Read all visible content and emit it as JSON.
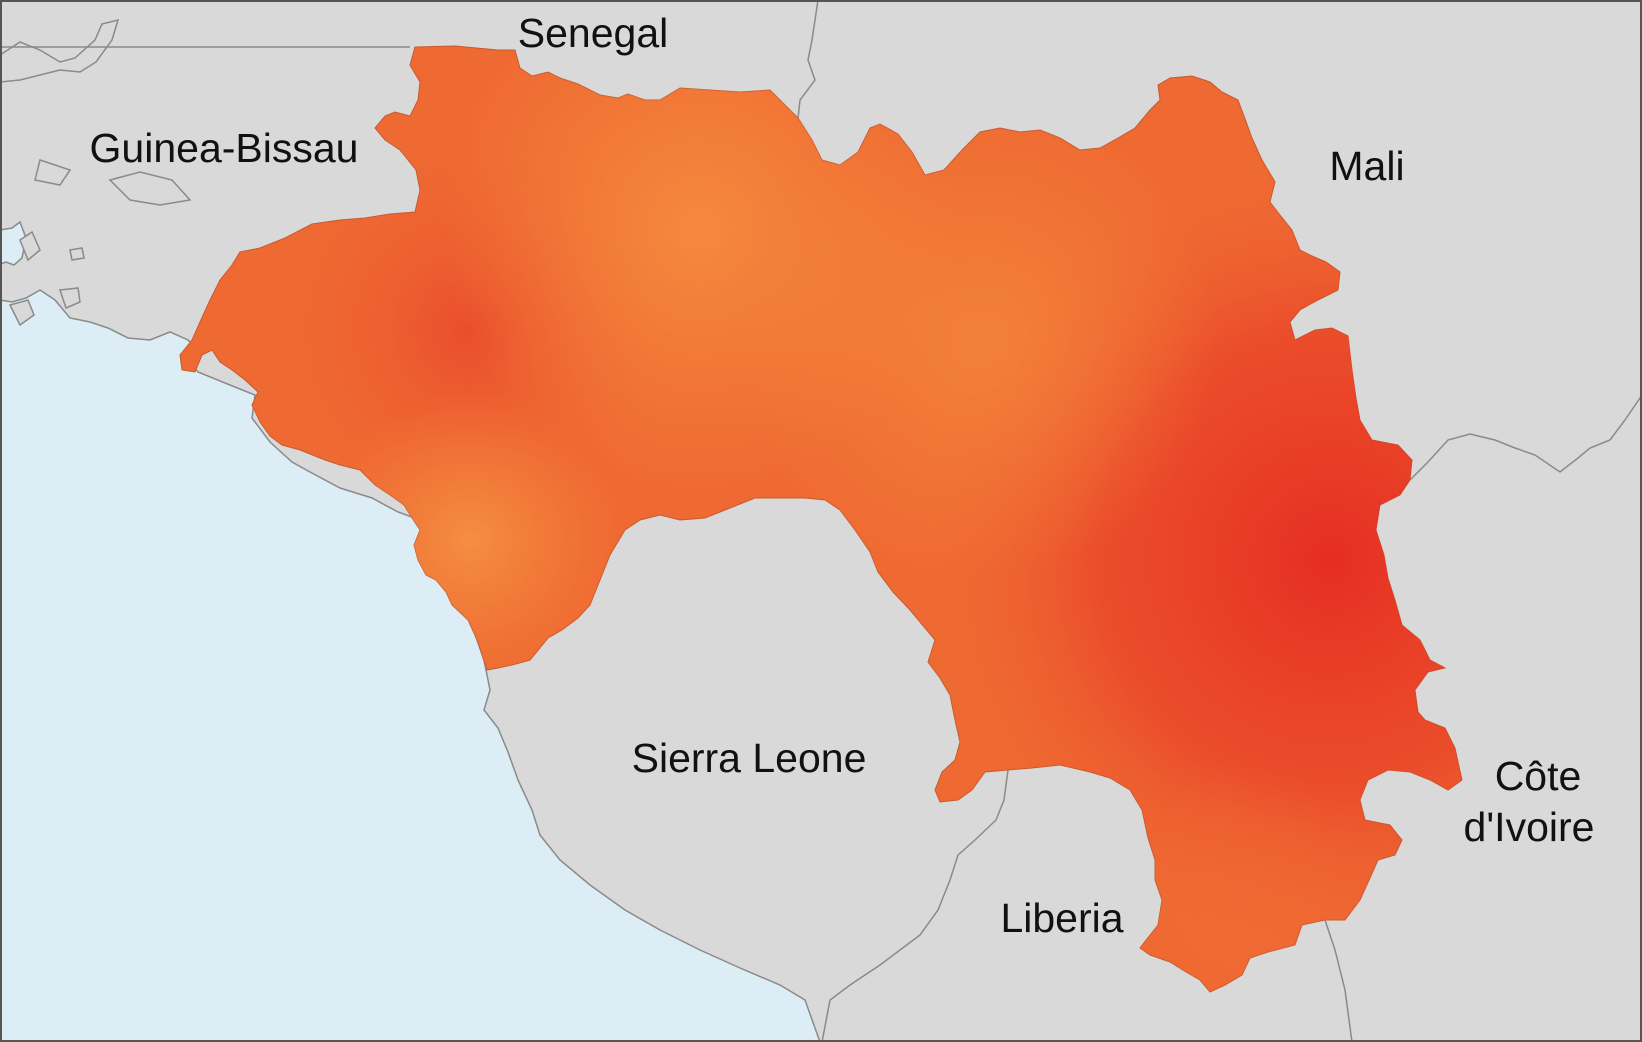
{
  "map": {
    "colors": {
      "land": "#d9d9d9",
      "border": "#8a8a8a",
      "ocean": "#dcedf5",
      "guinea_light": "#f58a3e",
      "guinea_mid": "#ef6a32",
      "guinea_dark": "#e52a22"
    },
    "labels": {
      "senegal": "Senegal",
      "guinea_bissau": "Guinea-Bissau",
      "mali": "Mali",
      "sierra_leone": "Sierra Leone",
      "liberia": "Liberia",
      "cote_divoire_line1": "Côte",
      "cote_divoire_line2": "d'Ivoire"
    }
  }
}
